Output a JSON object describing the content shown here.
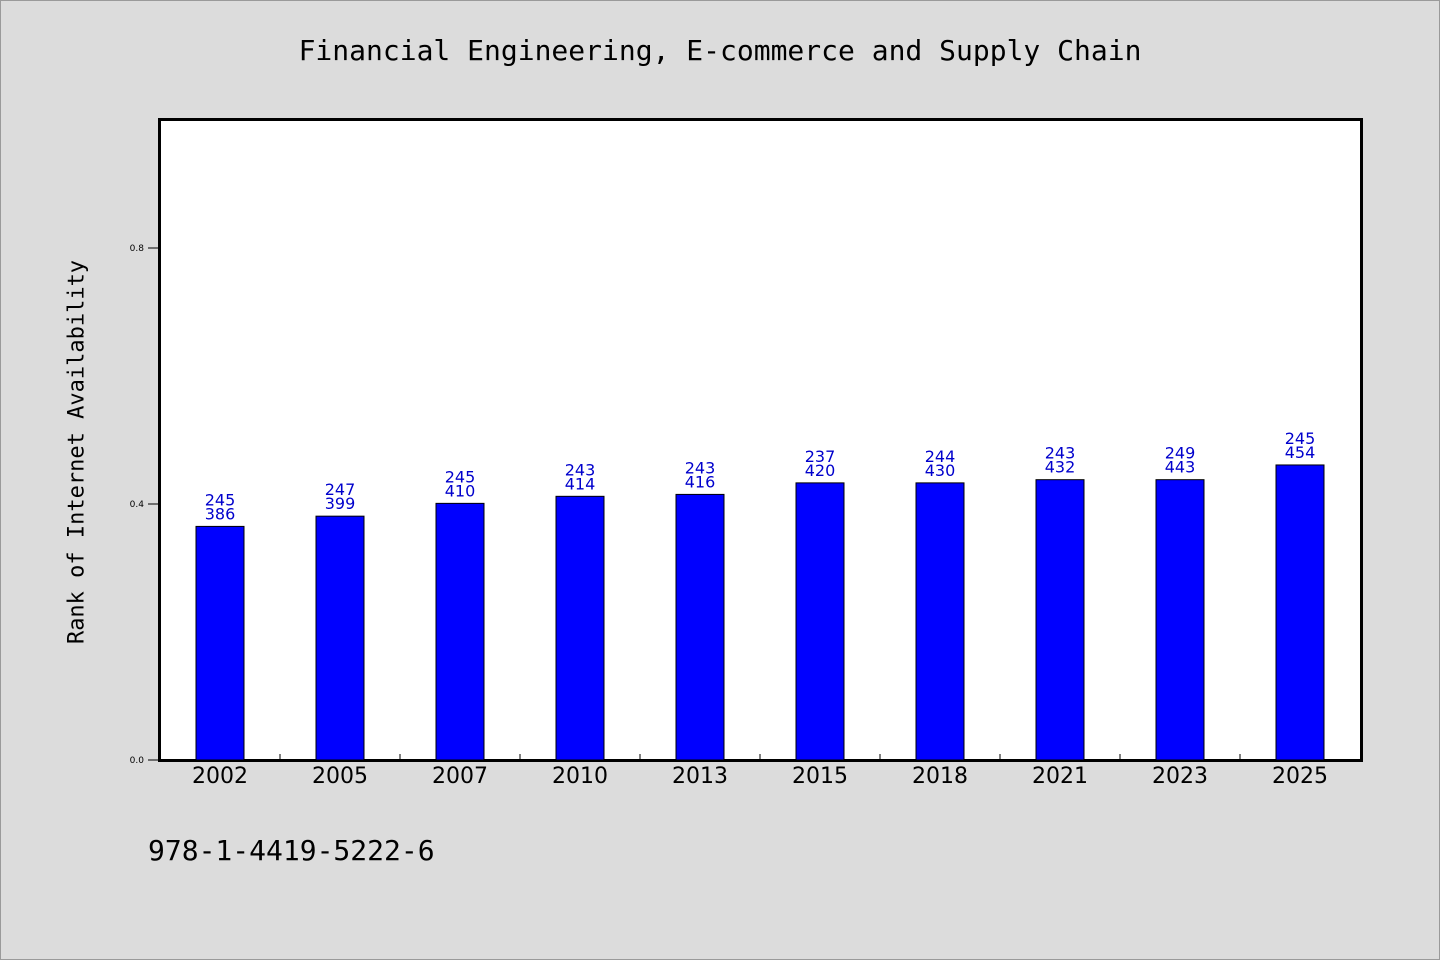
{
  "chart_data": {
    "type": "bar",
    "title": "Financial Engineering, E-commerce and Supply Chain",
    "xlabel": "",
    "ylabel": "Rank of Internet Availability",
    "ylim": [
      0,
      1.0
    ],
    "yticks": [
      0.0,
      0.4,
      0.8
    ],
    "ytick_labels": [
      "0.0",
      "0.4",
      "0.8"
    ],
    "grid": false,
    "categories": [
      "2002",
      "2005",
      "2007",
      "2010",
      "2013",
      "2015",
      "2018",
      "2021",
      "2023",
      "2025"
    ],
    "values": [
      0.365,
      0.381,
      0.401,
      0.412,
      0.415,
      0.433,
      0.433,
      0.438,
      0.438,
      0.461
    ],
    "labels_top": [
      "245",
      "247",
      "245",
      "243",
      "243",
      "237",
      "244",
      "243",
      "249",
      "245"
    ],
    "labels_bottom": [
      "386",
      "399",
      "410",
      "414",
      "416",
      "420",
      "430",
      "432",
      "443",
      "454"
    ],
    "bar_color": "#0000ff",
    "label_color": "#0000cc"
  },
  "footer": {
    "isbn": "978-1-4419-5222-6"
  }
}
